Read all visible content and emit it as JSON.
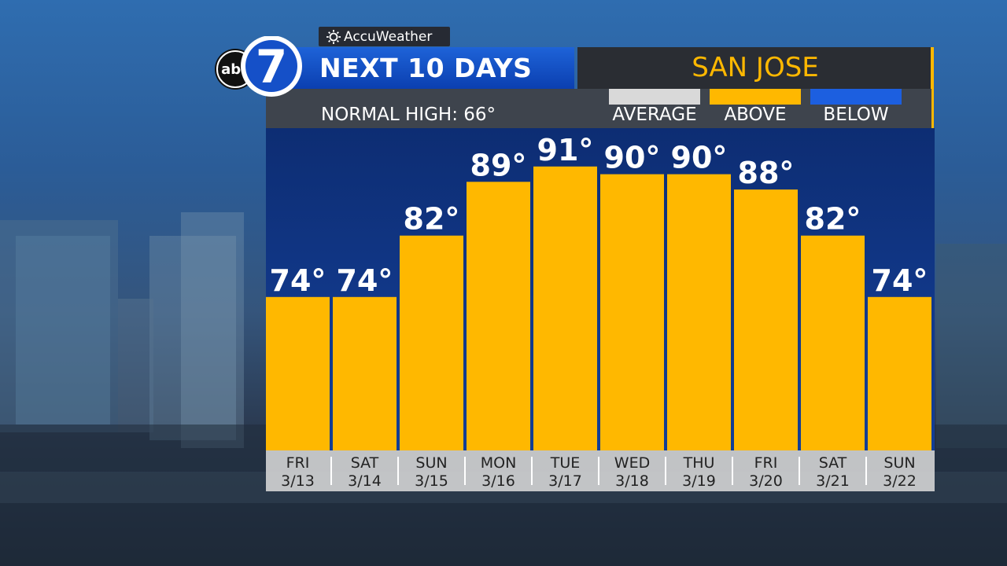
{
  "brand": {
    "network_logo": "abc",
    "channel_number": "7",
    "weather_brand": "AccuWeather",
    "sun_icon": "sun-icon"
  },
  "header": {
    "title": "NEXT 10 DAYS",
    "city": "SAN JOSE"
  },
  "subheader": {
    "normal_high": "NORMAL HIGH: 66°"
  },
  "legend": {
    "items": [
      {
        "label": "AVERAGE",
        "color": "#d9d9d9"
      },
      {
        "label": "ABOVE",
        "color": "#ffb800"
      },
      {
        "label": "BELOW",
        "color": "#1c5fe0"
      }
    ]
  },
  "colors": {
    "above": "#ffb800",
    "accent": "#ffb800",
    "title_blue": "#1550c8"
  },
  "chart_data": {
    "type": "bar",
    "title": "NEXT 10 DAYS",
    "categories": [
      "FRI 3/13",
      "SAT 3/14",
      "SUN 3/15",
      "MON 3/16",
      "TUE 3/17",
      "WED 3/18",
      "THU 3/19",
      "FRI 3/20",
      "SAT 3/21",
      "SUN 3/22"
    ],
    "day_labels": [
      "FRI",
      "SAT",
      "SUN",
      "MON",
      "TUE",
      "WED",
      "THU",
      "FRI",
      "SAT",
      "SUN"
    ],
    "date_labels": [
      "3/13",
      "3/14",
      "3/15",
      "3/16",
      "3/17",
      "3/18",
      "3/19",
      "3/20",
      "3/21",
      "3/22"
    ],
    "values": [
      74,
      74,
      82,
      89,
      91,
      90,
      90,
      88,
      82,
      74
    ],
    "value_labels": [
      "74°",
      "74°",
      "82°",
      "89°",
      "91°",
      "90°",
      "90°",
      "88°",
      "82°",
      "74°"
    ],
    "status": [
      "ABOVE",
      "ABOVE",
      "ABOVE",
      "ABOVE",
      "ABOVE",
      "ABOVE",
      "ABOVE",
      "ABOVE",
      "ABOVE",
      "ABOVE"
    ],
    "ylim": [
      54,
      96
    ],
    "grid": false,
    "legend_position": "top-right"
  }
}
